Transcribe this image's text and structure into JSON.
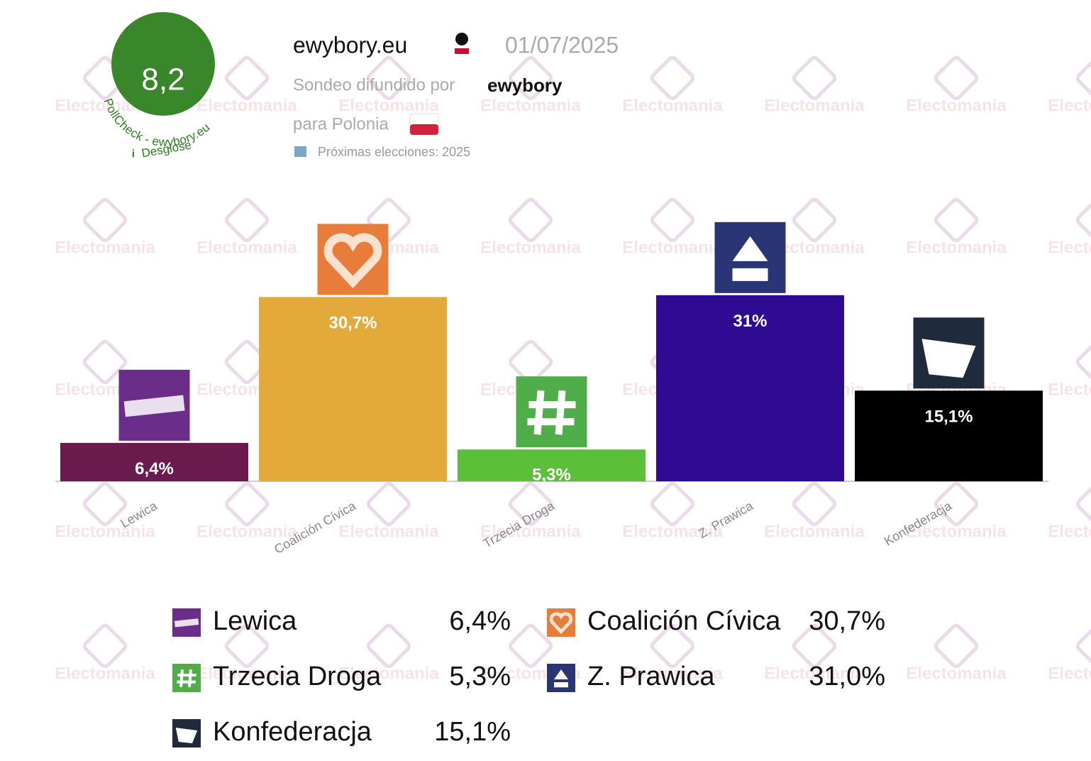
{
  "header": {
    "score": "8,2",
    "ring_text": "PollCheck - ewybory.eu",
    "info": "i",
    "breakdown": "Desglose",
    "source": "ewybory.eu",
    "date": "01/07/2025",
    "published_by": "Sondeo difundido por",
    "publisher": "ewybory",
    "region": "para Polonia",
    "next_elections": "Próximas elecciones: 2025",
    "watermark": "Electomania"
  },
  "chart_data": {
    "type": "bar",
    "categories": [
      "Lewica",
      "Coalición Cívica",
      "Trzecia Droga",
      "Z. Prawica",
      "Konfederacja"
    ],
    "values": [
      6.4,
      30.7,
      5.3,
      31,
      15.1
    ],
    "value_labels": [
      "6,4%",
      "30,7%",
      "5,3%",
      "31%",
      "15,1%"
    ],
    "legend_value_labels": [
      "6,4%",
      "30,7%",
      "5,3%",
      "31,0%",
      "15,1%"
    ],
    "colors": [
      "#6b1a4d",
      "#e3a93a",
      "#5bbf3a",
      "#2f0b94",
      "#000000"
    ],
    "ylim": [
      0,
      35
    ]
  }
}
